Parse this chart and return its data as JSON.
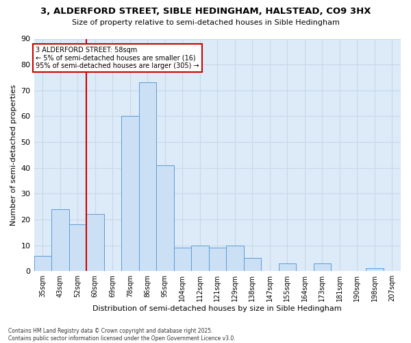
{
  "title": "3, ALDERFORD STREET, SIBLE HEDINGHAM, HALSTEAD, CO9 3HX",
  "subtitle": "Size of property relative to semi-detached houses in Sible Hedingham",
  "xlabel": "Distribution of semi-detached houses by size in Sible Hedingham",
  "ylabel": "Number of semi-detached properties",
  "footer_line1": "Contains HM Land Registry data © Crown copyright and database right 2025.",
  "footer_line2": "Contains public sector information licensed under the Open Government Licence v3.0.",
  "annotation_line1": "3 ALDERFORD STREET: 58sqm",
  "annotation_line2": "← 5% of semi-detached houses are smaller (16)",
  "annotation_line3": "95% of semi-detached houses are larger (305) →",
  "categories": [
    "35sqm",
    "43sqm",
    "52sqm",
    "60sqm",
    "69sqm",
    "78sqm",
    "86sqm",
    "95sqm",
    "104sqm",
    "112sqm",
    "121sqm",
    "129sqm",
    "138sqm",
    "147sqm",
    "155sqm",
    "164sqm",
    "173sqm",
    "181sqm",
    "190sqm",
    "198sqm",
    "207sqm"
  ],
  "bar_heights": [
    6,
    24,
    18,
    22,
    0,
    60,
    73,
    41,
    9,
    10,
    9,
    10,
    5,
    0,
    3,
    0,
    3,
    0,
    0,
    1,
    0
  ],
  "bar_color": "#cce0f5",
  "bar_edge_color": "#5b9bd5",
  "red_line_color": "#cc0000",
  "grid_color": "#c8d8e8",
  "bg_color": "#ddeaf8",
  "ylim": [
    0,
    90
  ],
  "yticks": [
    0,
    10,
    20,
    30,
    40,
    50,
    60,
    70,
    80,
    90
  ],
  "red_line_index": 3
}
